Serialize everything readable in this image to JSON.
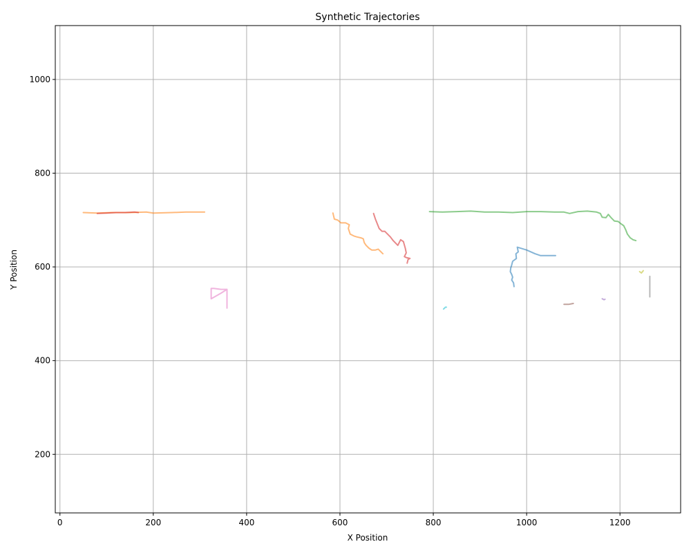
{
  "chart_data": {
    "type": "line",
    "title": "Synthetic Trajectories",
    "xlabel": "X Position",
    "ylabel": "Y Position",
    "xlim": [
      -10,
      1330
    ],
    "ylim": [
      75,
      1115
    ],
    "xticks": [
      0,
      200,
      400,
      600,
      800,
      1000,
      1200
    ],
    "yticks": [
      200,
      400,
      600,
      800,
      1000
    ],
    "grid": true,
    "series": [
      {
        "color": "#1f77b4",
        "points": [
          [
            1062,
            624
          ],
          [
            1050,
            624
          ],
          [
            1030,
            624
          ],
          [
            1018,
            628
          ],
          [
            1000,
            636
          ],
          [
            980,
            642
          ],
          [
            982,
            632
          ],
          [
            977,
            628
          ],
          [
            978,
            618
          ],
          [
            970,
            612
          ],
          [
            968,
            604
          ],
          [
            966,
            598
          ],
          [
            965,
            590
          ],
          [
            968,
            584
          ],
          [
            970,
            578
          ],
          [
            968,
            572
          ],
          [
            972,
            566
          ],
          [
            973,
            558
          ]
        ]
      },
      {
        "color": "#ff7f0e",
        "points": [
          [
            50,
            716
          ],
          [
            80,
            715
          ],
          [
            110,
            716
          ],
          [
            150,
            716
          ],
          [
            185,
            717
          ],
          [
            200,
            715
          ],
          [
            240,
            716
          ],
          [
            270,
            717
          ],
          [
            300,
            717
          ],
          [
            310,
            717
          ]
        ]
      },
      {
        "color": "#ff7f0e",
        "points": [
          [
            585,
            715
          ],
          [
            588,
            702
          ],
          [
            595,
            700
          ],
          [
            602,
            694
          ],
          [
            612,
            694
          ],
          [
            620,
            690
          ],
          [
            618,
            682
          ],
          [
            622,
            670
          ],
          [
            630,
            666
          ],
          [
            636,
            664
          ],
          [
            645,
            662
          ],
          [
            650,
            660
          ],
          [
            652,
            652
          ],
          [
            656,
            646
          ],
          [
            662,
            640
          ],
          [
            668,
            636
          ],
          [
            676,
            636
          ],
          [
            682,
            638
          ],
          [
            688,
            632
          ],
          [
            692,
            628
          ]
        ]
      },
      {
        "color": "#2ca02c",
        "points": [
          [
            792,
            718
          ],
          [
            820,
            717
          ],
          [
            850,
            718
          ],
          [
            880,
            719
          ],
          [
            910,
            717
          ],
          [
            940,
            717
          ],
          [
            970,
            716
          ],
          [
            1000,
            718
          ],
          [
            1030,
            718
          ],
          [
            1060,
            717
          ],
          [
            1080,
            717
          ],
          [
            1092,
            714
          ],
          [
            1110,
            718
          ],
          [
            1130,
            719
          ],
          [
            1150,
            717
          ],
          [
            1158,
            714
          ],
          [
            1162,
            706
          ],
          [
            1170,
            705
          ],
          [
            1175,
            712
          ],
          [
            1182,
            704
          ],
          [
            1188,
            698
          ],
          [
            1196,
            697
          ],
          [
            1202,
            692
          ],
          [
            1208,
            688
          ],
          [
            1212,
            680
          ],
          [
            1216,
            670
          ],
          [
            1222,
            662
          ],
          [
            1228,
            658
          ],
          [
            1234,
            656
          ]
        ]
      },
      {
        "color": "#d62728",
        "points": [
          [
            672,
            714
          ],
          [
            676,
            702
          ],
          [
            684,
            682
          ],
          [
            690,
            676
          ],
          [
            696,
            676
          ],
          [
            702,
            670
          ],
          [
            708,
            664
          ],
          [
            714,
            656
          ],
          [
            720,
            650
          ],
          [
            724,
            646
          ],
          [
            730,
            658
          ],
          [
            736,
            654
          ],
          [
            740,
            640
          ],
          [
            742,
            630
          ],
          [
            738,
            622
          ],
          [
            742,
            620
          ],
          [
            750,
            618
          ],
          [
            746,
            616
          ],
          [
            744,
            608
          ]
        ]
      },
      {
        "color": "#d62728",
        "points": [
          [
            80,
            714
          ],
          [
            100,
            715
          ],
          [
            120,
            716
          ],
          [
            140,
            716
          ],
          [
            160,
            717
          ],
          [
            168,
            716
          ]
        ]
      },
      {
        "color": "#e377c2",
        "points": [
          [
            358,
            512
          ],
          [
            358,
            524
          ],
          [
            358,
            540
          ],
          [
            358,
            552
          ],
          [
            345,
            552
          ],
          [
            330,
            554
          ],
          [
            324,
            554
          ],
          [
            324,
            540
          ],
          [
            324,
            532
          ],
          [
            345,
            544
          ],
          [
            358,
            552
          ]
        ]
      },
      {
        "color": "#17becf",
        "points": [
          [
            822,
            510
          ],
          [
            826,
            514
          ],
          [
            828,
            514
          ]
        ]
      },
      {
        "color": "#8c564b",
        "points": [
          [
            1080,
            520
          ],
          [
            1090,
            520
          ],
          [
            1100,
            522
          ]
        ]
      },
      {
        "color": "#9467bd",
        "points": [
          [
            1162,
            532
          ],
          [
            1166,
            530
          ],
          [
            1168,
            531
          ]
        ]
      },
      {
        "color": "#bcbd22",
        "points": [
          [
            1242,
            590
          ],
          [
            1246,
            587
          ],
          [
            1250,
            592
          ]
        ]
      },
      {
        "color": "#7f7f7f",
        "points": [
          [
            1264,
            580
          ],
          [
            1264,
            562
          ],
          [
            1264,
            548
          ],
          [
            1264,
            536
          ]
        ]
      }
    ]
  }
}
